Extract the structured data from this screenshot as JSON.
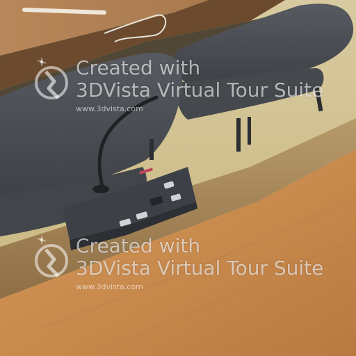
{
  "watermarks": [
    {
      "line1": "Created with",
      "line2": "3DVista Virtual Tour Suite",
      "url": "www.3dvista.com"
    },
    {
      "line1": "Created with",
      "line2": "3DVista Virtual Tour Suite",
      "url": "www.3dvista.com"
    }
  ],
  "colors": {
    "desk_wood": "#c98a4d",
    "desk_edge": "#a8824f",
    "floor": "#d2c48f",
    "chair": "#4b4f55",
    "console": "#3d4147"
  }
}
